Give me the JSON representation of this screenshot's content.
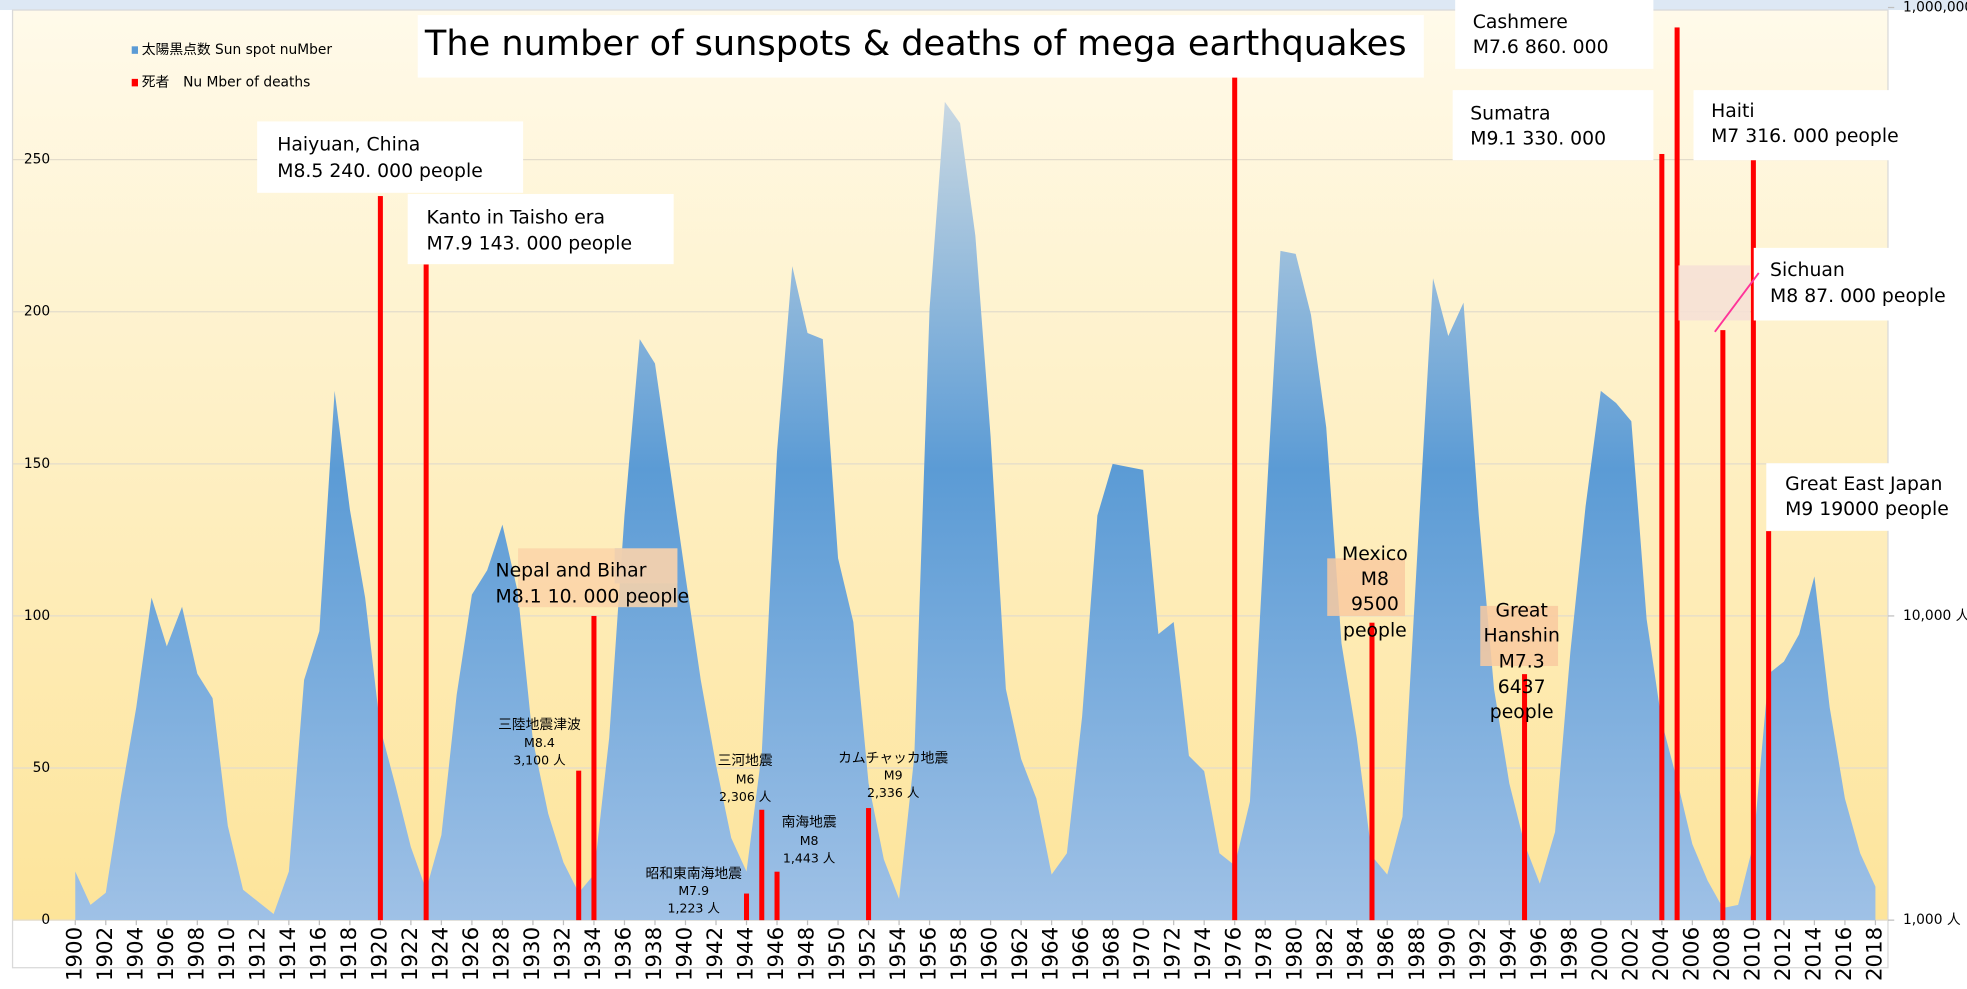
{
  "chart_data": {
    "type": "area",
    "title": "The number of sunspots & deaths of mega earthquakes",
    "x": [
      1900,
      1901,
      1902,
      1903,
      1904,
      1905,
      1906,
      1907,
      1908,
      1909,
      1910,
      1911,
      1912,
      1913,
      1914,
      1915,
      1916,
      1917,
      1918,
      1919,
      1920,
      1921,
      1922,
      1923,
      1924,
      1925,
      1926,
      1927,
      1928,
      1929,
      1930,
      1931,
      1932,
      1933,
      1934,
      1935,
      1936,
      1937,
      1938,
      1939,
      1940,
      1941,
      1942,
      1943,
      1944,
      1945,
      1946,
      1947,
      1948,
      1949,
      1950,
      1951,
      1952,
      1953,
      1954,
      1955,
      1956,
      1957,
      1958,
      1959,
      1960,
      1961,
      1962,
      1963,
      1964,
      1965,
      1966,
      1967,
      1968,
      1969,
      1970,
      1971,
      1972,
      1973,
      1974,
      1975,
      1976,
      1977,
      1978,
      1979,
      1980,
      1981,
      1982,
      1983,
      1984,
      1985,
      1986,
      1987,
      1988,
      1989,
      1990,
      1991,
      1992,
      1993,
      1994,
      1995,
      1996,
      1997,
      1998,
      1999,
      2000,
      2001,
      2002,
      2003,
      2004,
      2005,
      2006,
      2007,
      2008,
      2009,
      2010,
      2011,
      2012,
      2013,
      2014,
      2015,
      2016,
      2017,
      2018
    ],
    "series": [
      {
        "name": "太陽黒点数 Sun spot nuMber",
        "color": "#5b9bd5",
        "values": [
          16,
          5,
          9,
          41,
          70,
          106,
          90,
          103,
          81,
          73,
          31,
          10,
          6,
          2,
          16,
          79,
          95,
          174,
          135,
          106,
          63,
          44,
          24,
          10,
          28,
          74,
          107,
          115,
          130,
          108,
          59,
          35,
          19,
          9,
          15,
          60,
          133,
          191,
          183,
          148,
          113,
          79,
          51,
          27,
          16,
          55,
          154,
          215,
          193,
          191,
          119,
          98,
          45,
          20,
          7,
          54,
          201,
          269,
          262,
          225,
          159,
          76,
          53,
          40,
          15,
          22,
          67,
          133,
          150,
          149,
          148,
          94,
          98,
          54,
          49,
          22,
          18,
          39,
          131,
          220,
          219,
          199,
          162,
          91,
          60,
          21,
          15,
          34,
          123,
          211,
          192,
          203,
          133,
          76,
          45,
          25,
          12,
          29,
          88,
          136,
          174,
          170,
          164,
          99,
          65,
          46,
          25,
          13,
          4,
          5,
          25,
          81,
          85,
          94,
          113,
          70,
          40,
          22,
          11
        ]
      },
      {
        "name": "死者　Nu Mber of deaths",
        "type": "bar",
        "axis": "y2",
        "color": "#ff0000",
        "x": [
          1920,
          1923,
          1933,
          1934,
          1944,
          1945,
          1946,
          1952,
          1976,
          1985,
          1995,
          2004,
          2005,
          2008,
          2010,
          2011
        ],
        "values": [
          240000,
          143000,
          3100,
          10000,
          1223,
          2306,
          1443,
          2336,
          655000,
          9500,
          6437,
          330000,
          860000,
          87000,
          316000,
          19000
        ]
      }
    ],
    "xlim": [
      1900,
      2018
    ],
    "xticks": [
      1900,
      1902,
      1904,
      1906,
      1908,
      1910,
      1912,
      1914,
      1916,
      1918,
      1920,
      1922,
      1924,
      1926,
      1928,
      1930,
      1932,
      1934,
      1936,
      1938,
      1940,
      1942,
      1944,
      1946,
      1948,
      1950,
      1952,
      1954,
      1956,
      1958,
      1960,
      1962,
      1964,
      1966,
      1968,
      1970,
      1972,
      1974,
      1976,
      1978,
      1980,
      1982,
      1984,
      1986,
      1988,
      1990,
      1992,
      1994,
      1996,
      1998,
      2000,
      2002,
      2004,
      2006,
      2008,
      2010,
      2012,
      2014,
      2016,
      2018
    ],
    "ylim": [
      0,
      300
    ],
    "yticks": [
      0,
      50,
      100,
      150,
      200,
      250
    ],
    "y2lim": [
      1000,
      1000000
    ],
    "y2log": true,
    "y2ticks": [
      {
        "value": 1000,
        "label": "1,000 人"
      },
      {
        "value": 10000,
        "label": "10,000 人"
      },
      {
        "value": 1000000,
        "label": "1,000,000 人"
      }
    ],
    "grid": true,
    "legend": "top-left",
    "annotations": [
      {
        "lines": [
          "Haiyuan, China",
          "M8.5  240. 000 people"
        ]
      },
      {
        "lines": [
          "Kanto in Taisho era",
          "M7.9  143. 000 people"
        ]
      },
      {
        "lines": [
          "Nepal and Bihar",
          "M8.1  10. 000 people"
        ]
      },
      {
        "lines": [
          "三陸地震津波",
          "M8.4",
          "3,100 人"
        ]
      },
      {
        "lines": [
          "昭和東南海地震",
          "M7.9",
          "1,223 人"
        ]
      },
      {
        "lines": [
          "三河地震",
          "M6",
          "2,306 人"
        ]
      },
      {
        "lines": [
          "南海地震",
          "M8",
          "1,443 人"
        ]
      },
      {
        "lines": [
          "カムチャッカ地震",
          "M9",
          "2,336 人"
        ]
      },
      {
        "lines": [
          "Mexico",
          "M8",
          "9500",
          "people"
        ]
      },
      {
        "lines": [
          "Great",
          "Hanshin",
          "M7.3",
          "6437",
          "people"
        ]
      },
      {
        "lines": [
          "Cashmere",
          "M7.6  860. 000"
        ]
      },
      {
        "lines": [
          "Sumatra",
          "M9.1  330. 000"
        ]
      },
      {
        "lines": [
          "Haiti",
          "M7  316. 000 people"
        ]
      },
      {
        "lines": [
          "Sichuan",
          "M8  87. 000 people"
        ]
      },
      {
        "lines": [
          "Great East Japan",
          "M9  19000 people"
        ]
      }
    ]
  }
}
